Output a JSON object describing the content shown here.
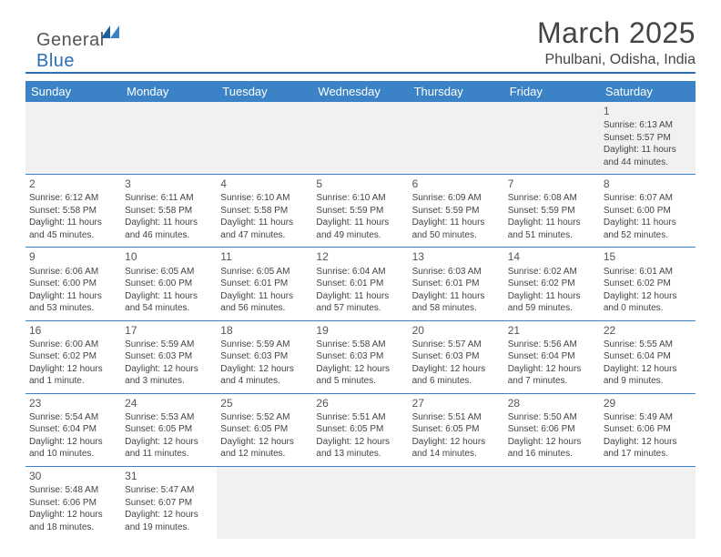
{
  "brand": {
    "part1": "General",
    "part2": "Blue"
  },
  "colors": {
    "accent": "#3b83c6",
    "rule": "#2a6fb5",
    "text": "#444444"
  },
  "title": "March 2025",
  "location": "Phulbani, Odisha, India",
  "day_headers": [
    "Sunday",
    "Monday",
    "Tuesday",
    "Wednesday",
    "Thursday",
    "Friday",
    "Saturday"
  ],
  "weeks": [
    [
      null,
      null,
      null,
      null,
      null,
      null,
      {
        "n": "1",
        "sr": "Sunrise: 6:13 AM",
        "ss": "Sunset: 5:57 PM",
        "dl": "Daylight: 11 hours and 44 minutes."
      }
    ],
    [
      {
        "n": "2",
        "sr": "Sunrise: 6:12 AM",
        "ss": "Sunset: 5:58 PM",
        "dl": "Daylight: 11 hours and 45 minutes."
      },
      {
        "n": "3",
        "sr": "Sunrise: 6:11 AM",
        "ss": "Sunset: 5:58 PM",
        "dl": "Daylight: 11 hours and 46 minutes."
      },
      {
        "n": "4",
        "sr": "Sunrise: 6:10 AM",
        "ss": "Sunset: 5:58 PM",
        "dl": "Daylight: 11 hours and 47 minutes."
      },
      {
        "n": "5",
        "sr": "Sunrise: 6:10 AM",
        "ss": "Sunset: 5:59 PM",
        "dl": "Daylight: 11 hours and 49 minutes."
      },
      {
        "n": "6",
        "sr": "Sunrise: 6:09 AM",
        "ss": "Sunset: 5:59 PM",
        "dl": "Daylight: 11 hours and 50 minutes."
      },
      {
        "n": "7",
        "sr": "Sunrise: 6:08 AM",
        "ss": "Sunset: 5:59 PM",
        "dl": "Daylight: 11 hours and 51 minutes."
      },
      {
        "n": "8",
        "sr": "Sunrise: 6:07 AM",
        "ss": "Sunset: 6:00 PM",
        "dl": "Daylight: 11 hours and 52 minutes."
      }
    ],
    [
      {
        "n": "9",
        "sr": "Sunrise: 6:06 AM",
        "ss": "Sunset: 6:00 PM",
        "dl": "Daylight: 11 hours and 53 minutes."
      },
      {
        "n": "10",
        "sr": "Sunrise: 6:05 AM",
        "ss": "Sunset: 6:00 PM",
        "dl": "Daylight: 11 hours and 54 minutes."
      },
      {
        "n": "11",
        "sr": "Sunrise: 6:05 AM",
        "ss": "Sunset: 6:01 PM",
        "dl": "Daylight: 11 hours and 56 minutes."
      },
      {
        "n": "12",
        "sr": "Sunrise: 6:04 AM",
        "ss": "Sunset: 6:01 PM",
        "dl": "Daylight: 11 hours and 57 minutes."
      },
      {
        "n": "13",
        "sr": "Sunrise: 6:03 AM",
        "ss": "Sunset: 6:01 PM",
        "dl": "Daylight: 11 hours and 58 minutes."
      },
      {
        "n": "14",
        "sr": "Sunrise: 6:02 AM",
        "ss": "Sunset: 6:02 PM",
        "dl": "Daylight: 11 hours and 59 minutes."
      },
      {
        "n": "15",
        "sr": "Sunrise: 6:01 AM",
        "ss": "Sunset: 6:02 PM",
        "dl": "Daylight: 12 hours and 0 minutes."
      }
    ],
    [
      {
        "n": "16",
        "sr": "Sunrise: 6:00 AM",
        "ss": "Sunset: 6:02 PM",
        "dl": "Daylight: 12 hours and 1 minute."
      },
      {
        "n": "17",
        "sr": "Sunrise: 5:59 AM",
        "ss": "Sunset: 6:03 PM",
        "dl": "Daylight: 12 hours and 3 minutes."
      },
      {
        "n": "18",
        "sr": "Sunrise: 5:59 AM",
        "ss": "Sunset: 6:03 PM",
        "dl": "Daylight: 12 hours and 4 minutes."
      },
      {
        "n": "19",
        "sr": "Sunrise: 5:58 AM",
        "ss": "Sunset: 6:03 PM",
        "dl": "Daylight: 12 hours and 5 minutes."
      },
      {
        "n": "20",
        "sr": "Sunrise: 5:57 AM",
        "ss": "Sunset: 6:03 PM",
        "dl": "Daylight: 12 hours and 6 minutes."
      },
      {
        "n": "21",
        "sr": "Sunrise: 5:56 AM",
        "ss": "Sunset: 6:04 PM",
        "dl": "Daylight: 12 hours and 7 minutes."
      },
      {
        "n": "22",
        "sr": "Sunrise: 5:55 AM",
        "ss": "Sunset: 6:04 PM",
        "dl": "Daylight: 12 hours and 9 minutes."
      }
    ],
    [
      {
        "n": "23",
        "sr": "Sunrise: 5:54 AM",
        "ss": "Sunset: 6:04 PM",
        "dl": "Daylight: 12 hours and 10 minutes."
      },
      {
        "n": "24",
        "sr": "Sunrise: 5:53 AM",
        "ss": "Sunset: 6:05 PM",
        "dl": "Daylight: 12 hours and 11 minutes."
      },
      {
        "n": "25",
        "sr": "Sunrise: 5:52 AM",
        "ss": "Sunset: 6:05 PM",
        "dl": "Daylight: 12 hours and 12 minutes."
      },
      {
        "n": "26",
        "sr": "Sunrise: 5:51 AM",
        "ss": "Sunset: 6:05 PM",
        "dl": "Daylight: 12 hours and 13 minutes."
      },
      {
        "n": "27",
        "sr": "Sunrise: 5:51 AM",
        "ss": "Sunset: 6:05 PM",
        "dl": "Daylight: 12 hours and 14 minutes."
      },
      {
        "n": "28",
        "sr": "Sunrise: 5:50 AM",
        "ss": "Sunset: 6:06 PM",
        "dl": "Daylight: 12 hours and 16 minutes."
      },
      {
        "n": "29",
        "sr": "Sunrise: 5:49 AM",
        "ss": "Sunset: 6:06 PM",
        "dl": "Daylight: 12 hours and 17 minutes."
      }
    ],
    [
      {
        "n": "30",
        "sr": "Sunrise: 5:48 AM",
        "ss": "Sunset: 6:06 PM",
        "dl": "Daylight: 12 hours and 18 minutes."
      },
      {
        "n": "31",
        "sr": "Sunrise: 5:47 AM",
        "ss": "Sunset: 6:07 PM",
        "dl": "Daylight: 12 hours and 19 minutes."
      },
      null,
      null,
      null,
      null,
      null
    ]
  ]
}
